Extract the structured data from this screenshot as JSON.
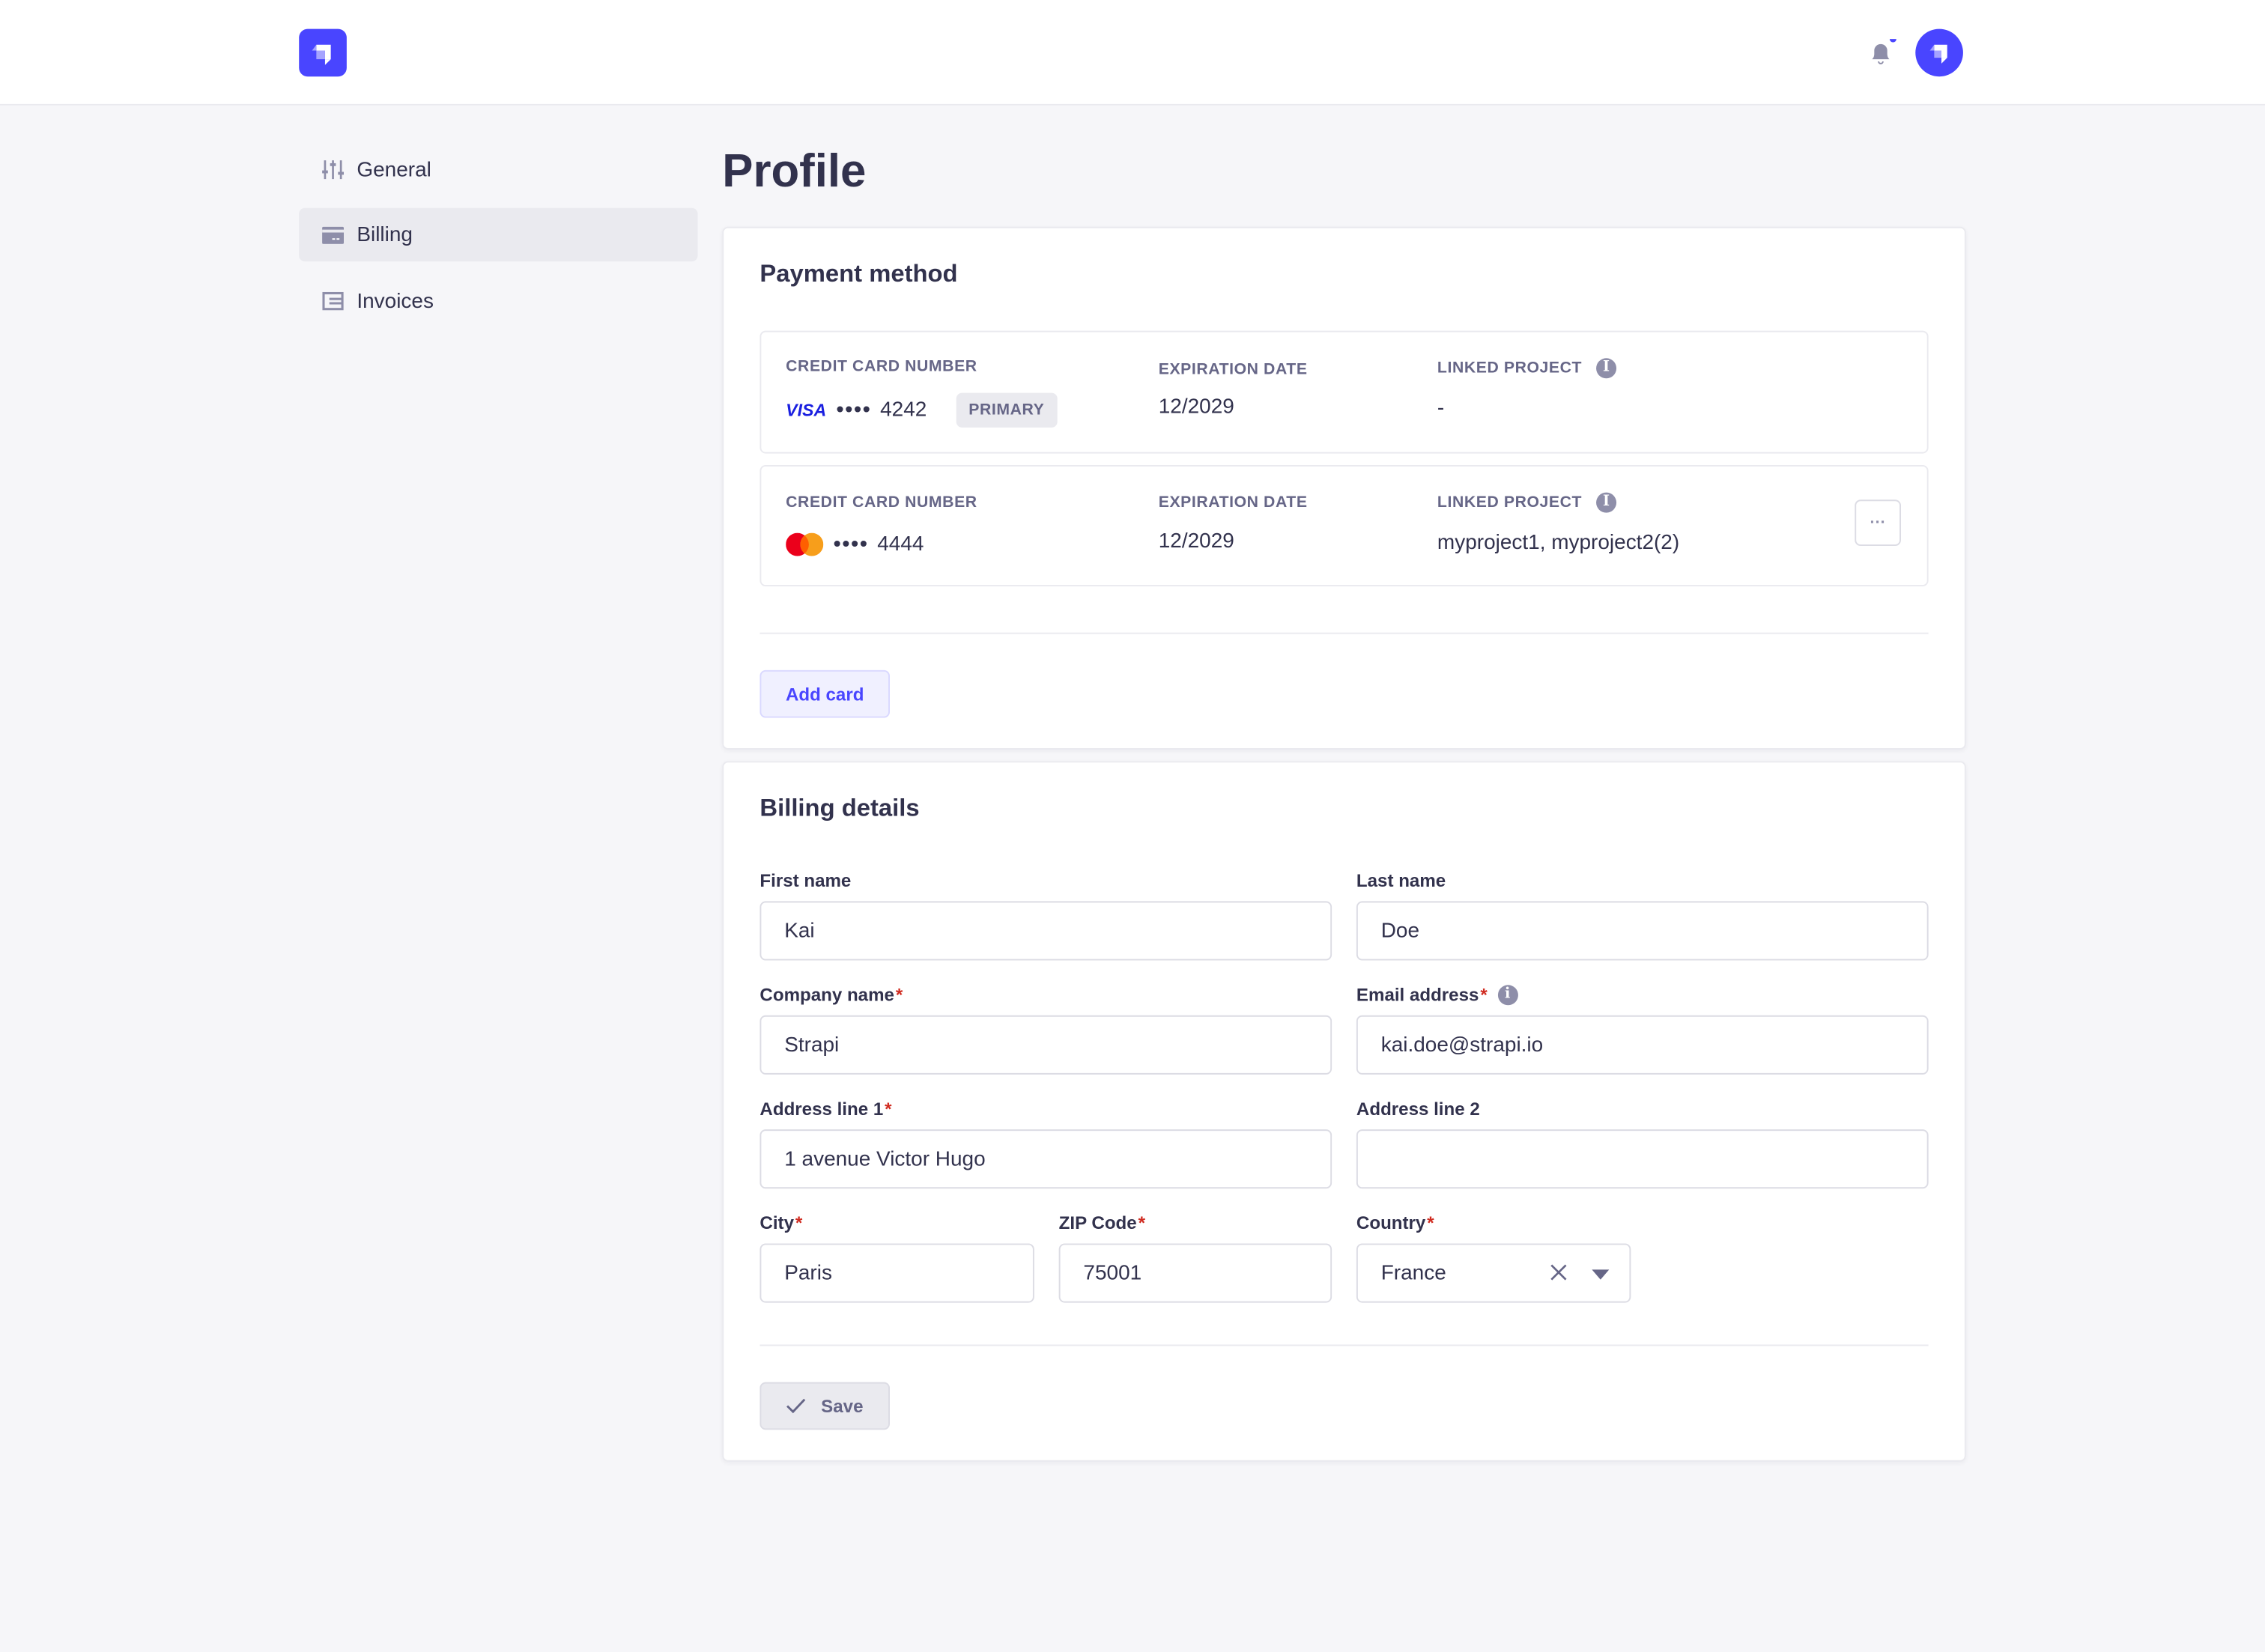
{
  "colors": {
    "brand": "#4945ff",
    "background": "#f6f6f9",
    "text": "#32324d",
    "required": "#d02b20"
  },
  "header": {
    "logo_icon": "strapi-logo-icon",
    "notification_icon": "bell-icon",
    "avatar_icon": "strapi-avatar"
  },
  "sidebar": {
    "items": [
      {
        "label": "General",
        "icon": "sliders-icon"
      },
      {
        "label": "Billing",
        "icon": "credit-card-icon",
        "active": true
      },
      {
        "label": "Invoices",
        "icon": "invoice-icon"
      }
    ]
  },
  "page": {
    "title": "Profile"
  },
  "payment": {
    "heading": "Payment method",
    "cards": [
      {
        "number_label": "Credit card number",
        "brand": "VISA",
        "dots": "••••",
        "last4": "4242",
        "badge": "PRIMARY",
        "exp_label": "Expiration date",
        "exp": "12/2029",
        "linked_label": "Linked project",
        "linked": "-"
      },
      {
        "number_label": "Credit card number",
        "brand": "mastercard",
        "dots": "••••",
        "last4": "4444",
        "exp_label": "Expiration date",
        "exp": "12/2029",
        "linked_label": "Linked project",
        "linked": "myproject1, myproject2(2)",
        "menu": "···"
      }
    ],
    "add_card": "Add card"
  },
  "billing": {
    "heading": "Billing details",
    "first_name": {
      "label": "First name",
      "value": "Kai"
    },
    "last_name": {
      "label": "Last name",
      "value": "Doe"
    },
    "company": {
      "label": "Company name",
      "value": "Strapi",
      "required": "*"
    },
    "email": {
      "label": "Email address",
      "value": "kai.doe@strapi.io",
      "required": "*"
    },
    "address1": {
      "label": "Address line 1",
      "value": "1 avenue Victor Hugo",
      "required": "*"
    },
    "address2": {
      "label": "Address line 2",
      "value": ""
    },
    "city": {
      "label": "City",
      "value": "Paris",
      "required": "*"
    },
    "zip": {
      "label": "ZIP Code",
      "value": "75001",
      "required": "*"
    },
    "country": {
      "label": "Country",
      "value": "France",
      "required": "*"
    },
    "save": "Save"
  }
}
